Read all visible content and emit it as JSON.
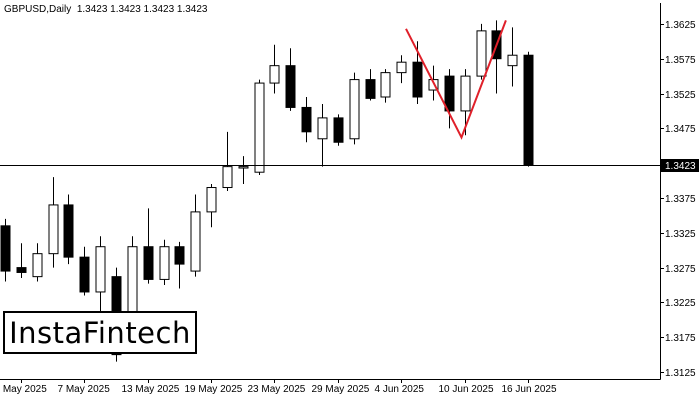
{
  "header": {
    "symbol": "GBPUSD,Daily",
    "ohlc": "1.3423 1.3423 1.3423 1.3423"
  },
  "brand": {
    "name": "InstaFintech"
  },
  "colors": {
    "background": "#ffffff",
    "bull_fill": "#ffffff",
    "bear_fill": "#000000",
    "outline": "#000000",
    "pattern_line": "#e0202a",
    "price_line": "#000000"
  },
  "chart_data": {
    "type": "candlestick",
    "title": "",
    "instrument": "GBPUSD",
    "timeframe": "Daily",
    "current_price": 1.3423,
    "current_price_label": "1.3423",
    "ylim": [
      1.3115,
      1.3655
    ],
    "y_ticks": [
      "1.3625",
      "1.3575",
      "1.3525",
      "1.3475",
      "1.3375",
      "1.3325",
      "1.3275",
      "1.3225",
      "1.3175",
      "1.3125"
    ],
    "x_ticks": [
      {
        "label": "1 May 2025",
        "index": 1
      },
      {
        "label": "7 May 2025",
        "index": 5
      },
      {
        "label": "13 May 2025",
        "index": 9
      },
      {
        "label": "19 May 2025",
        "index": 13
      },
      {
        "label": "23 May 2025",
        "index": 17
      },
      {
        "label": "29 May 2025",
        "index": 21
      },
      {
        "label": "4 Jun 2025",
        "index": 25
      },
      {
        "label": "10 Jun 2025",
        "index": 29
      },
      {
        "label": "16 Jun 2025",
        "index": 33
      }
    ],
    "candles": [
      {
        "o": 1.3335,
        "h": 1.3345,
        "l": 1.3255,
        "c": 1.327
      },
      {
        "o": 1.3275,
        "h": 1.331,
        "l": 1.326,
        "c": 1.3268
      },
      {
        "o": 1.3262,
        "h": 1.331,
        "l": 1.3255,
        "c": 1.3295
      },
      {
        "o": 1.3295,
        "h": 1.3405,
        "l": 1.3275,
        "c": 1.3365
      },
      {
        "o": 1.3365,
        "h": 1.338,
        "l": 1.328,
        "c": 1.329
      },
      {
        "o": 1.329,
        "h": 1.3305,
        "l": 1.3235,
        "c": 1.324
      },
      {
        "o": 1.324,
        "h": 1.332,
        "l": 1.3195,
        "c": 1.3305
      },
      {
        "o": 1.3262,
        "h": 1.3275,
        "l": 1.314,
        "c": 1.315
      },
      {
        "o": 1.3175,
        "h": 1.332,
        "l": 1.316,
        "c": 1.3305
      },
      {
        "o": 1.3305,
        "h": 1.336,
        "l": 1.3252,
        "c": 1.3258
      },
      {
        "o": 1.3258,
        "h": 1.3315,
        "l": 1.325,
        "c": 1.3305
      },
      {
        "o": 1.3305,
        "h": 1.3312,
        "l": 1.3245,
        "c": 1.328
      },
      {
        "o": 1.327,
        "h": 1.338,
        "l": 1.3262,
        "c": 1.3355
      },
      {
        "o": 1.3355,
        "h": 1.3395,
        "l": 1.3333,
        "c": 1.339
      },
      {
        "o": 1.339,
        "h": 1.347,
        "l": 1.3385,
        "c": 1.342
      },
      {
        "o": 1.3418,
        "h": 1.3435,
        "l": 1.3395,
        "c": 1.342
      },
      {
        "o": 1.3412,
        "h": 1.3545,
        "l": 1.3408,
        "c": 1.354
      },
      {
        "o": 1.354,
        "h": 1.3595,
        "l": 1.3525,
        "c": 1.3565
      },
      {
        "o": 1.3565,
        "h": 1.359,
        "l": 1.35,
        "c": 1.3505
      },
      {
        "o": 1.3505,
        "h": 1.352,
        "l": 1.3455,
        "c": 1.347
      },
      {
        "o": 1.346,
        "h": 1.351,
        "l": 1.342,
        "c": 1.349
      },
      {
        "o": 1.349,
        "h": 1.3495,
        "l": 1.345,
        "c": 1.3455
      },
      {
        "o": 1.346,
        "h": 1.3555,
        "l": 1.3452,
        "c": 1.3545
      },
      {
        "o": 1.3545,
        "h": 1.356,
        "l": 1.3515,
        "c": 1.3518
      },
      {
        "o": 1.352,
        "h": 1.356,
        "l": 1.3512,
        "c": 1.3555
      },
      {
        "o": 1.3555,
        "h": 1.358,
        "l": 1.354,
        "c": 1.357
      },
      {
        "o": 1.357,
        "h": 1.36,
        "l": 1.351,
        "c": 1.352
      },
      {
        "o": 1.353,
        "h": 1.3565,
        "l": 1.3515,
        "c": 1.3545
      },
      {
        "o": 1.355,
        "h": 1.356,
        "l": 1.3475,
        "c": 1.35
      },
      {
        "o": 1.35,
        "h": 1.356,
        "l": 1.3465,
        "c": 1.355
      },
      {
        "o": 1.355,
        "h": 1.3625,
        "l": 1.3545,
        "c": 1.3615
      },
      {
        "o": 1.3615,
        "h": 1.363,
        "l": 1.3525,
        "c": 1.3575
      },
      {
        "o": 1.3565,
        "h": 1.362,
        "l": 1.3535,
        "c": 1.358
      },
      {
        "o": 1.358,
        "h": 1.3585,
        "l": 1.342,
        "c": 1.3423
      }
    ],
    "pattern": {
      "name": "",
      "points": [
        {
          "index": 25.3,
          "price": 1.3618
        },
        {
          "index": 28.8,
          "price": 1.3462
        },
        {
          "index": 31.6,
          "price": 1.363
        }
      ]
    }
  }
}
